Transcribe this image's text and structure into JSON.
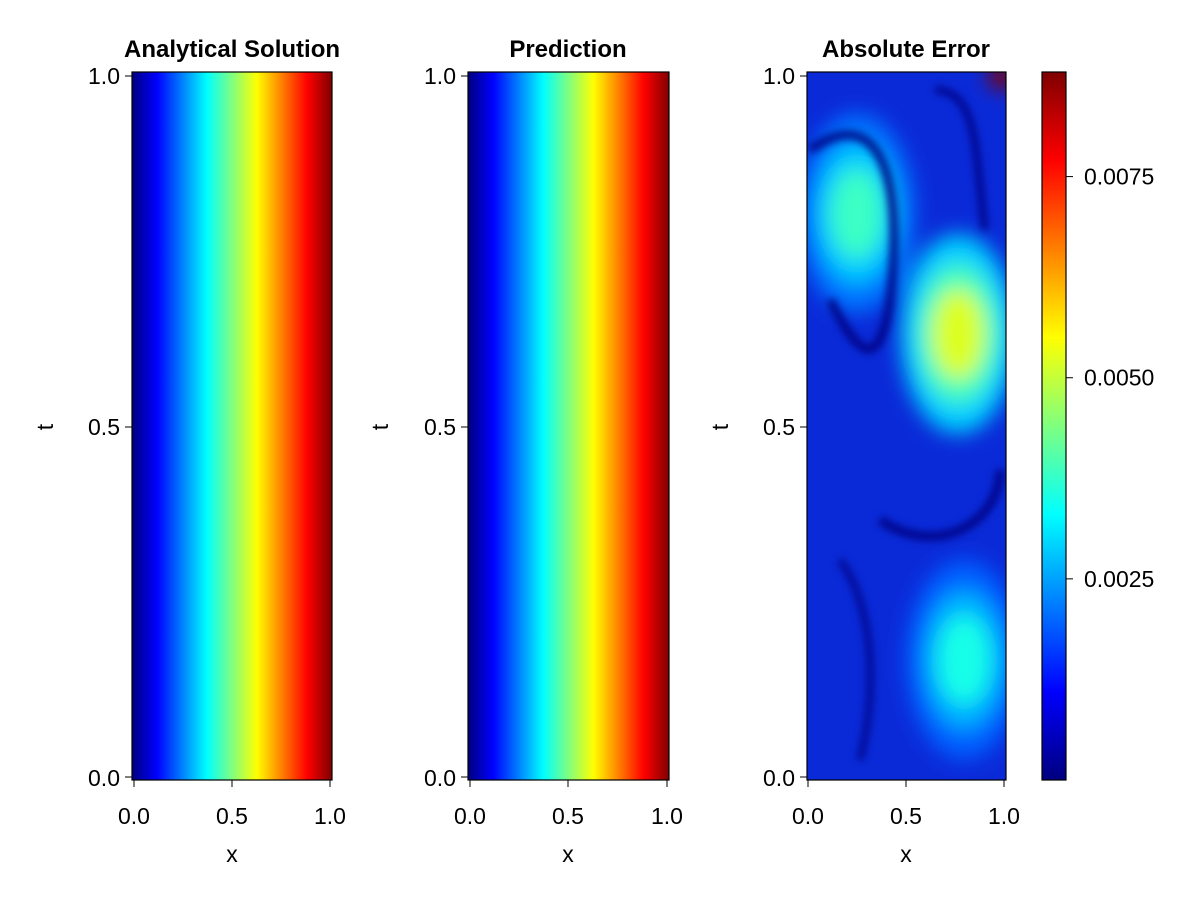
{
  "figure": {
    "colormap": "jet",
    "colormap_stops": [
      "#00007f",
      "#0000ff",
      "#007fff",
      "#00ffff",
      "#7fff7f",
      "#ffff00",
      "#ff7f00",
      "#ff0000",
      "#7f0000"
    ]
  },
  "chart_data": [
    {
      "type": "heatmap",
      "title": "Analytical Solution",
      "xlabel": "x",
      "ylabel": "t",
      "xlim": [
        0,
        1
      ],
      "ylim": [
        0,
        1
      ],
      "xticks": [
        0.0,
        0.5,
        1.0
      ],
      "yticks": [
        0.0,
        0.5,
        1.0
      ],
      "xtick_labels": [
        "0.0",
        "0.5",
        "1.0"
      ],
      "ytick_labels": [
        "0.0",
        "0.5",
        "1.0"
      ],
      "value_range": [
        0,
        1
      ],
      "description_of_field": "monotonically increasing in x; level curves bend toward larger x as t decreases",
      "sample_grid": {
        "x": [
          0.0,
          0.25,
          0.5,
          0.75,
          1.0
        ],
        "t": [
          0.0,
          0.5,
          1.0
        ],
        "values_by_t": [
          [
            0.0,
            0.25,
            0.5,
            0.75,
            1.0
          ],
          [
            0.0,
            0.29,
            0.56,
            0.8,
            1.0
          ],
          [
            0.0,
            0.34,
            0.61,
            0.83,
            1.0
          ]
        ]
      }
    },
    {
      "type": "heatmap",
      "title": "Prediction",
      "xlabel": "x",
      "ylabel": "t",
      "xlim": [
        0,
        1
      ],
      "ylim": [
        0,
        1
      ],
      "xticks": [
        0.0,
        0.5,
        1.0
      ],
      "yticks": [
        0.0,
        0.5,
        1.0
      ],
      "xtick_labels": [
        "0.0",
        "0.5",
        "1.0"
      ],
      "ytick_labels": [
        "0.0",
        "0.5",
        "1.0"
      ],
      "value_range": [
        0,
        1
      ],
      "sample_grid": {
        "x": [
          0.0,
          0.25,
          0.5,
          0.75,
          1.0
        ],
        "t": [
          0.0,
          0.5,
          1.0
        ],
        "values_by_t": [
          [
            0.0,
            0.25,
            0.5,
            0.75,
            1.0
          ],
          [
            0.0,
            0.29,
            0.56,
            0.8,
            1.0
          ],
          [
            0.0,
            0.34,
            0.61,
            0.83,
            1.0
          ]
        ]
      }
    },
    {
      "type": "heatmap",
      "title": "Absolute Error",
      "xlabel": "x",
      "ylabel": "t",
      "xlim": [
        0,
        1
      ],
      "ylim": [
        0,
        1
      ],
      "xticks": [
        0.0,
        0.5,
        1.0
      ],
      "yticks": [
        0.0,
        0.5,
        1.0
      ],
      "xtick_labels": [
        "0.0",
        "0.5",
        "1.0"
      ],
      "ytick_labels": [
        "0.0",
        "0.5",
        "1.0"
      ],
      "value_range": [
        0,
        0.0088
      ],
      "features": [
        {
          "kind": "blob",
          "x": 0.25,
          "t": 0.8,
          "peak": 0.0038
        },
        {
          "kind": "blob",
          "x": 0.76,
          "t": 0.63,
          "peak": 0.0052
        },
        {
          "kind": "blob",
          "x": 0.79,
          "t": 0.17,
          "peak": 0.0035
        },
        {
          "kind": "corner-spike",
          "x": 1.0,
          "t": 1.0,
          "peak": 0.0088
        }
      ],
      "colorbar": {
        "min": 0,
        "max": 0.0088,
        "ticks": [
          0.0025,
          0.005,
          0.0075
        ],
        "tick_labels": [
          "0.0025",
          "0.0050",
          "0.0075"
        ]
      }
    }
  ]
}
